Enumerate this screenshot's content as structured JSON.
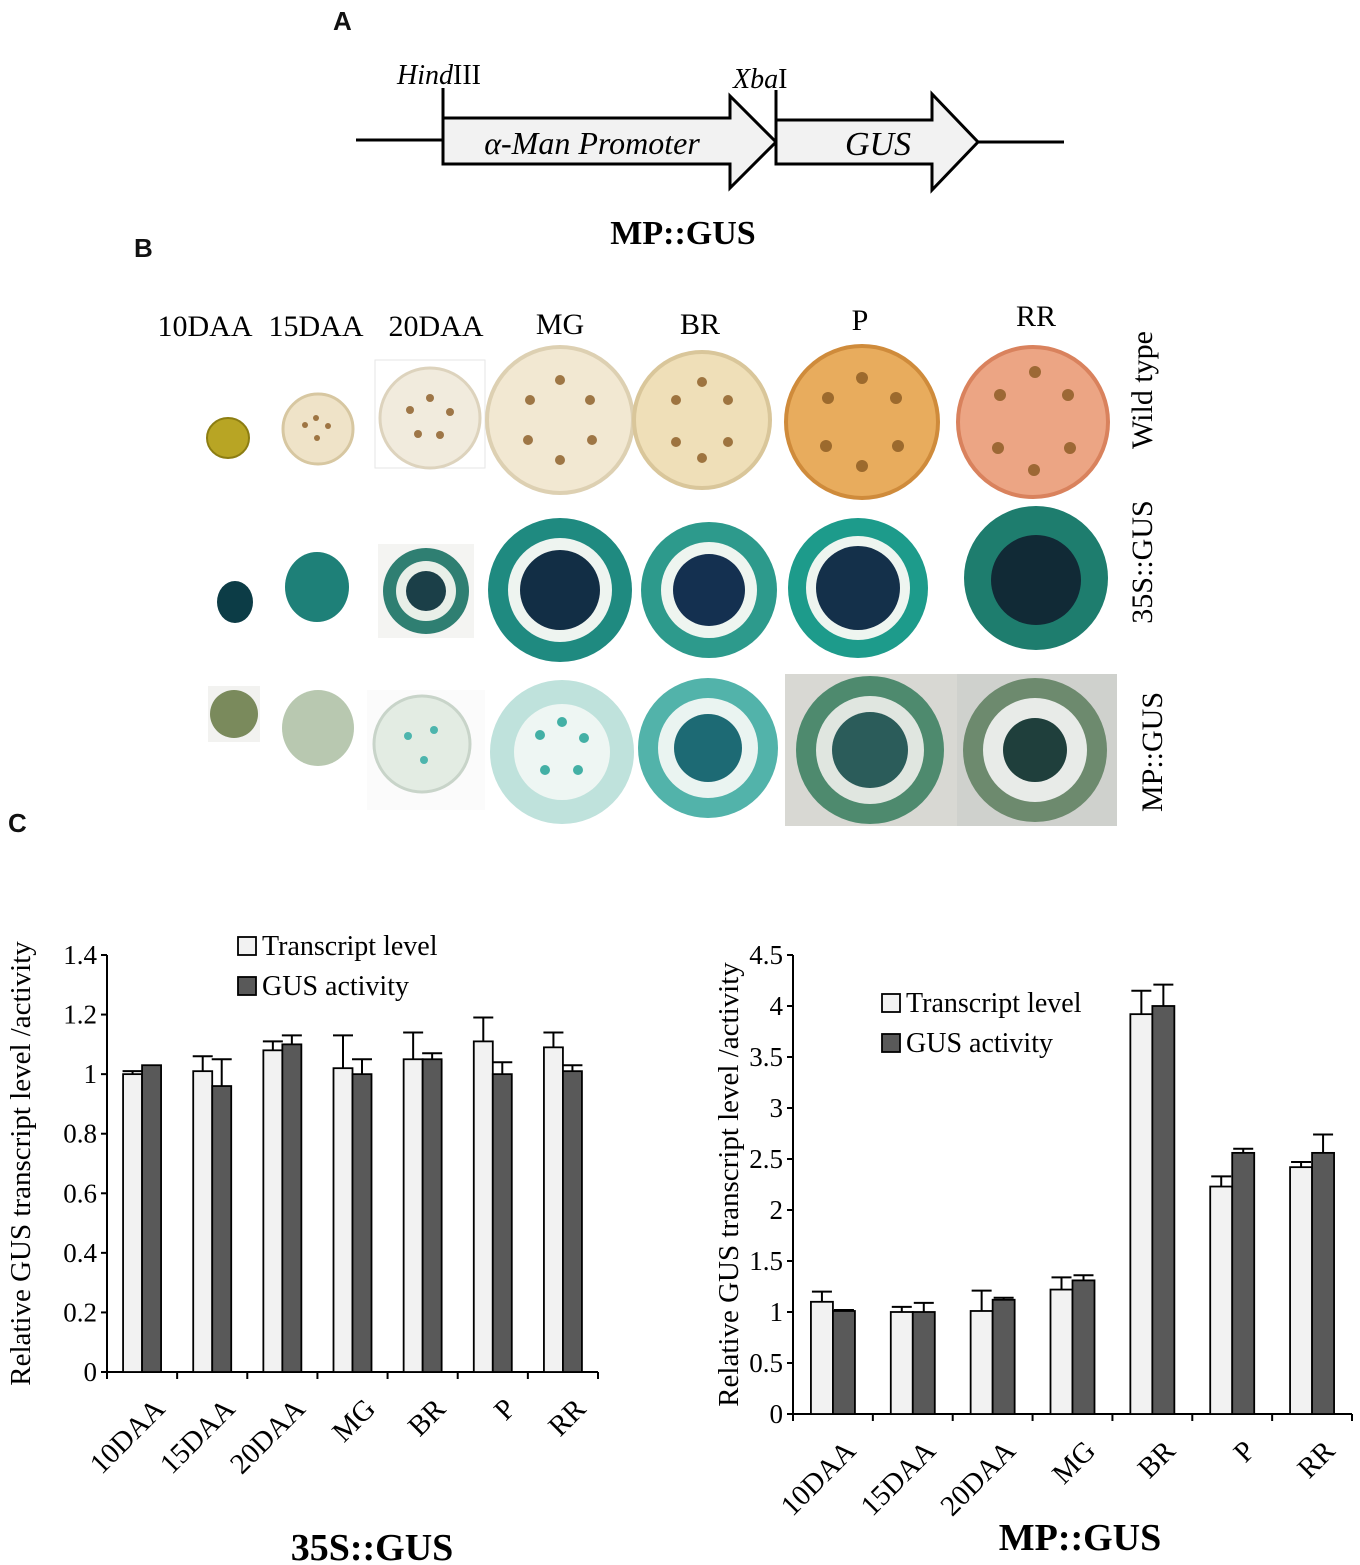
{
  "panels": {
    "a": "A",
    "b": "B",
    "c": "C"
  },
  "construct": {
    "site_left_italic": "Hind",
    "site_left_roman": "III",
    "site_right_italic": "Xba",
    "site_right_roman": "I",
    "promoter_label": "α-Man Promoter",
    "reporter_label": "GUS",
    "caption": "MP::GUS"
  },
  "fruit_panel": {
    "stages": [
      "10DAA",
      "15DAA",
      "20DAA",
      "MG",
      "BR",
      "P",
      "RR"
    ],
    "rows": [
      "Wild type",
      "35S::GUS",
      "MP::GUS"
    ],
    "colors": {
      "wild_type": [
        "#b8a524",
        "#efe3c8",
        "#f1ebdd",
        "#f2e8d2",
        "#efdfb8",
        "#e8ac5d",
        "#eca584"
      ],
      "s35": [
        "#0c3c46",
        "#1e8078",
        "#2f7f72",
        "#1f8a80",
        "#2d9a8c",
        "#1d9b8b",
        "#1e7d6e"
      ],
      "mp": [
        "#7a8a5c",
        "#b8c8b0",
        "#e3ece3",
        "#bfe2dc",
        "#52b3aa",
        "#4e8a6e",
        "#6d8a6e"
      ]
    }
  },
  "chart_data": [
    {
      "type": "bar",
      "title": "35S::GUS",
      "ylabel": "Relative GUS transcript level /activity",
      "categories": [
        "10DAA",
        "15DAA",
        "20DAA",
        "MG",
        "BR",
        "P",
        "RR"
      ],
      "ylim": [
        0,
        1.4
      ],
      "yticks": [
        "0",
        "0.2",
        "0.4",
        "0.6",
        "0.8",
        "1",
        "1.2",
        "1.4"
      ],
      "legend_position": "top-center",
      "series": [
        {
          "name": "Transcript level",
          "color": "#f2f2f2",
          "values": [
            1.0,
            1.01,
            1.08,
            1.02,
            1.05,
            1.11,
            1.09
          ],
          "errors": [
            0.01,
            0.05,
            0.03,
            0.11,
            0.09,
            0.08,
            0.05
          ]
        },
        {
          "name": "GUS activity",
          "color": "#595959",
          "values": [
            1.03,
            0.96,
            1.1,
            1.0,
            1.05,
            1.0,
            1.01
          ],
          "errors": [
            0.0,
            0.09,
            0.03,
            0.05,
            0.02,
            0.04,
            0.02
          ]
        }
      ]
    },
    {
      "type": "bar",
      "title": "MP::GUS",
      "ylabel": "Relative GUS transcript level /activity",
      "categories": [
        "10DAA",
        "15DAA",
        "20DAA",
        "MG",
        "BR",
        "P",
        "RR"
      ],
      "ylim": [
        0,
        4.5
      ],
      "yticks": [
        "0",
        "0.5",
        "1",
        "1.5",
        "2",
        "2.5",
        "3",
        "3.5",
        "4",
        "4.5"
      ],
      "legend_position": "top-center",
      "series": [
        {
          "name": "Transcript level",
          "color": "#f2f2f2",
          "values": [
            1.1,
            1.0,
            1.01,
            1.22,
            3.92,
            2.23,
            2.42
          ],
          "errors": [
            0.1,
            0.05,
            0.2,
            0.12,
            0.23,
            0.1,
            0.05
          ]
        },
        {
          "name": "GUS activity",
          "color": "#595959",
          "values": [
            1.01,
            1.0,
            1.12,
            1.31,
            4.0,
            2.56,
            2.56
          ],
          "errors": [
            0.01,
            0.09,
            0.02,
            0.05,
            0.21,
            0.04,
            0.18
          ]
        }
      ]
    }
  ]
}
